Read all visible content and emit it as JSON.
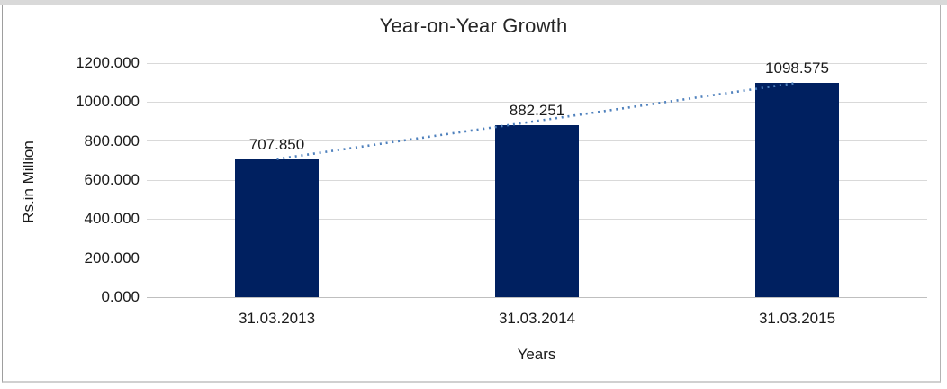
{
  "window": {
    "top_strip_color": "#d9d9d9"
  },
  "chart_data": {
    "type": "bar",
    "title": "Year-on-Year Growth",
    "xlabel": "Years",
    "ylabel": "Rs.in Million",
    "categories": [
      "31.03.2013",
      "31.03.2014",
      "31.03.2015"
    ],
    "values": [
      707.85,
      882.251,
      1098.575
    ],
    "data_labels": [
      "707.850",
      "882.251",
      "1098.575"
    ],
    "y_ticks": [
      {
        "value": 1200,
        "label": "1200.000"
      },
      {
        "value": 1000,
        "label": "1000.000"
      },
      {
        "value": 800,
        "label": "800.000"
      },
      {
        "value": 600,
        "label": "600.000"
      },
      {
        "value": 400,
        "label": "400.000"
      },
      {
        "value": 200,
        "label": "200.000"
      },
      {
        "value": 0,
        "label": "0.000"
      }
    ],
    "ylim": [
      0,
      1200
    ],
    "grid": true,
    "legend": "none",
    "bar_color": "#002060",
    "gridline_color": "#d9d9d9",
    "axis_line_color": "#bfbfbf",
    "text_color": "#1a1a1a",
    "trendline": {
      "type": "linear",
      "style": "dotted",
      "color": "#4f81bd",
      "from_value": 707.85,
      "to_value": 1098.575
    }
  }
}
